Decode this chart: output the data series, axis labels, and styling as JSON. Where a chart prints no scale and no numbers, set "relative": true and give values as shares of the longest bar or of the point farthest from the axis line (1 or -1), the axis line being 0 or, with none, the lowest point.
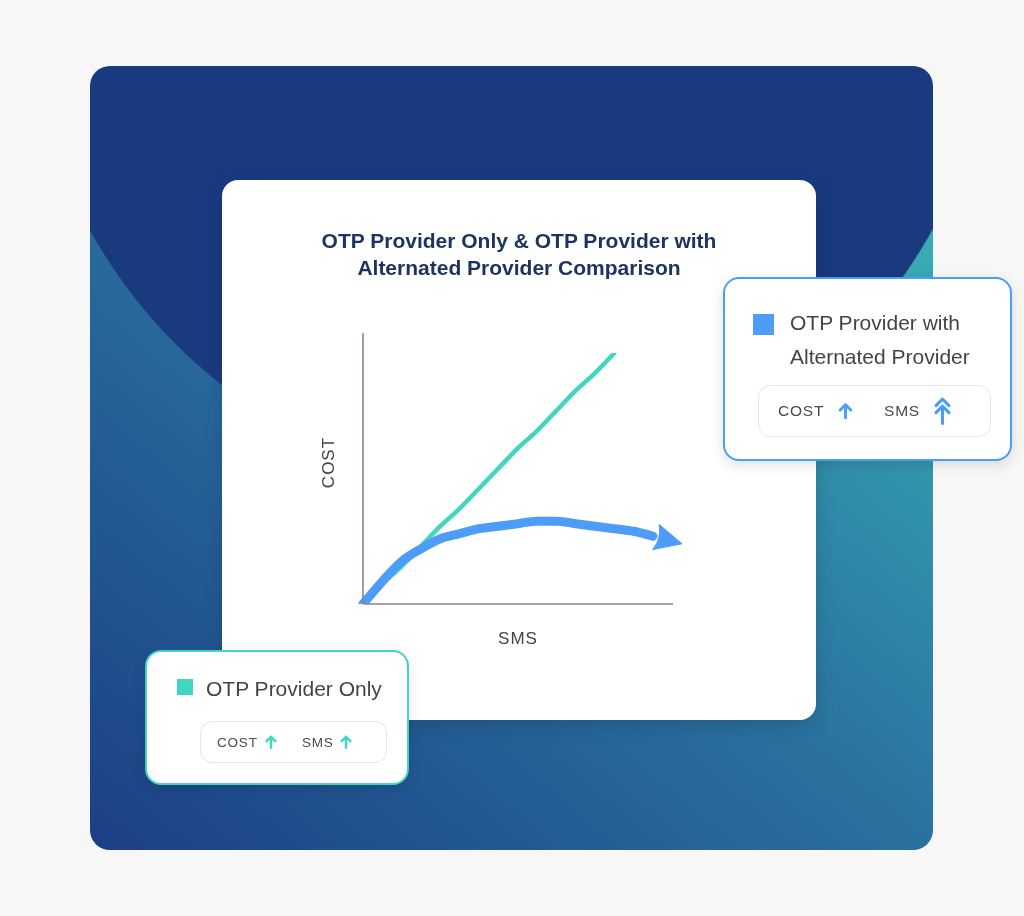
{
  "chart_data": {
    "type": "line",
    "title": "OTP Provider Only & OTP Provider with Alternated Provider Comparison",
    "xlabel": "SMS",
    "ylabel": "COST",
    "relative": true,
    "categories": [
      null,
      null,
      null,
      null,
      null,
      null,
      null,
      null,
      null,
      null,
      null,
      null,
      null,
      null,
      null,
      null
    ],
    "series": [
      {
        "name": "OTP Provider Only",
        "color": "#40d6bf",
        "values": [
          0,
          0.08,
          0.15,
          0.23,
          0.31,
          0.38,
          0.46,
          0.54,
          0.62,
          0.69,
          0.77,
          0.85,
          0.92,
          1,
          null,
          null
        ]
      },
      {
        "name": "OTP Provider with Alternated Provider",
        "color": "#4d9df8",
        "values": [
          0,
          0.09,
          0.17,
          0.22,
          0.26,
          0.28,
          0.3,
          0.31,
          0.32,
          0.33,
          0.33,
          0.32,
          0.31,
          0.3,
          0.29,
          0.27
        ]
      }
    ],
    "legend": "right",
    "annotations": [
      "COST",
      "SMS",
      "COST",
      "SMS"
    ]
  }
}
